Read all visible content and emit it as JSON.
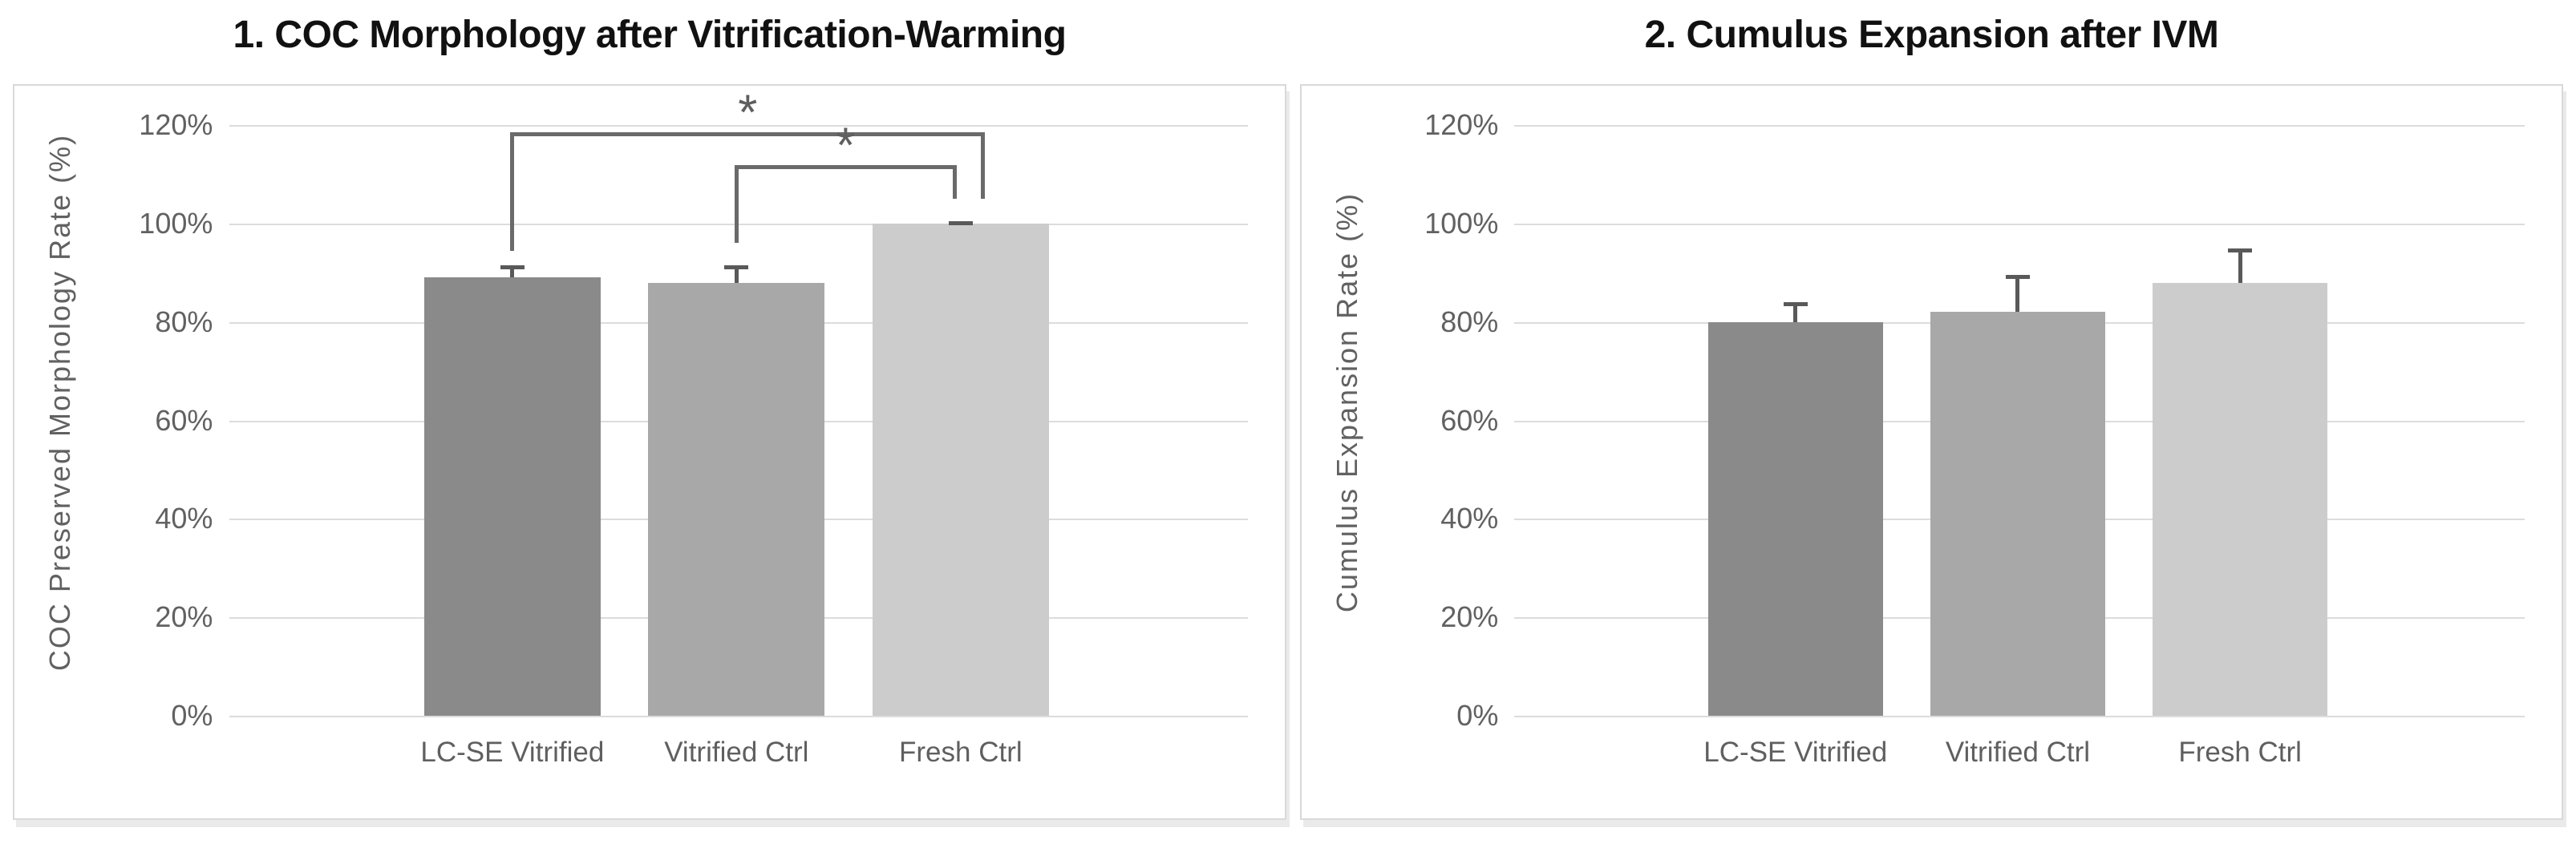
{
  "figure": {
    "background": "#ffffff",
    "panel_border_color": "#d9d9d9",
    "grid_color": "#dcdcdc",
    "axis_text_color": "#616161",
    "title_color": "#111111",
    "error_bar_color": "#595959",
    "bracket_color": "#6a6a6a",
    "bar_colors": [
      "#8a8a8a",
      "#a8a8a8",
      "#cccccc"
    ]
  },
  "chart_data": [
    {
      "type": "bar",
      "title": "1. COC Morphology after Vitrification-Warming",
      "ylabel": "COC Preserved Morphology Rate (%)",
      "xlabel": "",
      "categories": [
        "LC-SE Vitrified",
        "Vitrified Ctrl",
        "Fresh Ctrl"
      ],
      "values": [
        89,
        88,
        100
      ],
      "error_plus": [
        2.5,
        3.5,
        0.5
      ],
      "ylim": [
        0,
        128
      ],
      "yticks": [
        0,
        20,
        40,
        60,
        80,
        100,
        120
      ],
      "ytick_labels": [
        "0%",
        "20%",
        "40%",
        "60%",
        "80%",
        "100%",
        "120%"
      ],
      "grid": true,
      "legend": false,
      "bar_center_fracs": [
        0.278,
        0.498,
        0.718
      ],
      "bar_width_frac": 0.173,
      "significance": [
        {
          "from": 0,
          "to": 2,
          "label": "*",
          "line_value": 118.5,
          "from_leg_value": 94.5,
          "to_leg_value": 105.0,
          "to_offset_frac": 0.022
        },
        {
          "from": 1,
          "to": 2,
          "label": "*",
          "line_value": 111.8,
          "from_leg_value": 96.0,
          "to_leg_value": 105.0,
          "to_offset_frac": -0.006
        }
      ]
    },
    {
      "type": "bar",
      "title": "2. Cumulus Expansion after IVM",
      "ylabel": "Cumulus Expansion Rate (%)",
      "xlabel": "",
      "categories": [
        "LC-SE Vitrified",
        "Vitrified Ctrl",
        "Fresh Ctrl"
      ],
      "values": [
        80,
        82,
        88
      ],
      "error_plus": [
        4,
        7.5,
        7
      ],
      "ylim": [
        0,
        128
      ],
      "yticks": [
        0,
        20,
        40,
        60,
        80,
        100,
        120
      ],
      "ytick_labels": [
        "0%",
        "20%",
        "40%",
        "60%",
        "80%",
        "100%",
        "120%"
      ],
      "grid": true,
      "legend": false,
      "bar_center_fracs": [
        0.278,
        0.498,
        0.718
      ],
      "bar_width_frac": 0.173,
      "significance": []
    }
  ]
}
